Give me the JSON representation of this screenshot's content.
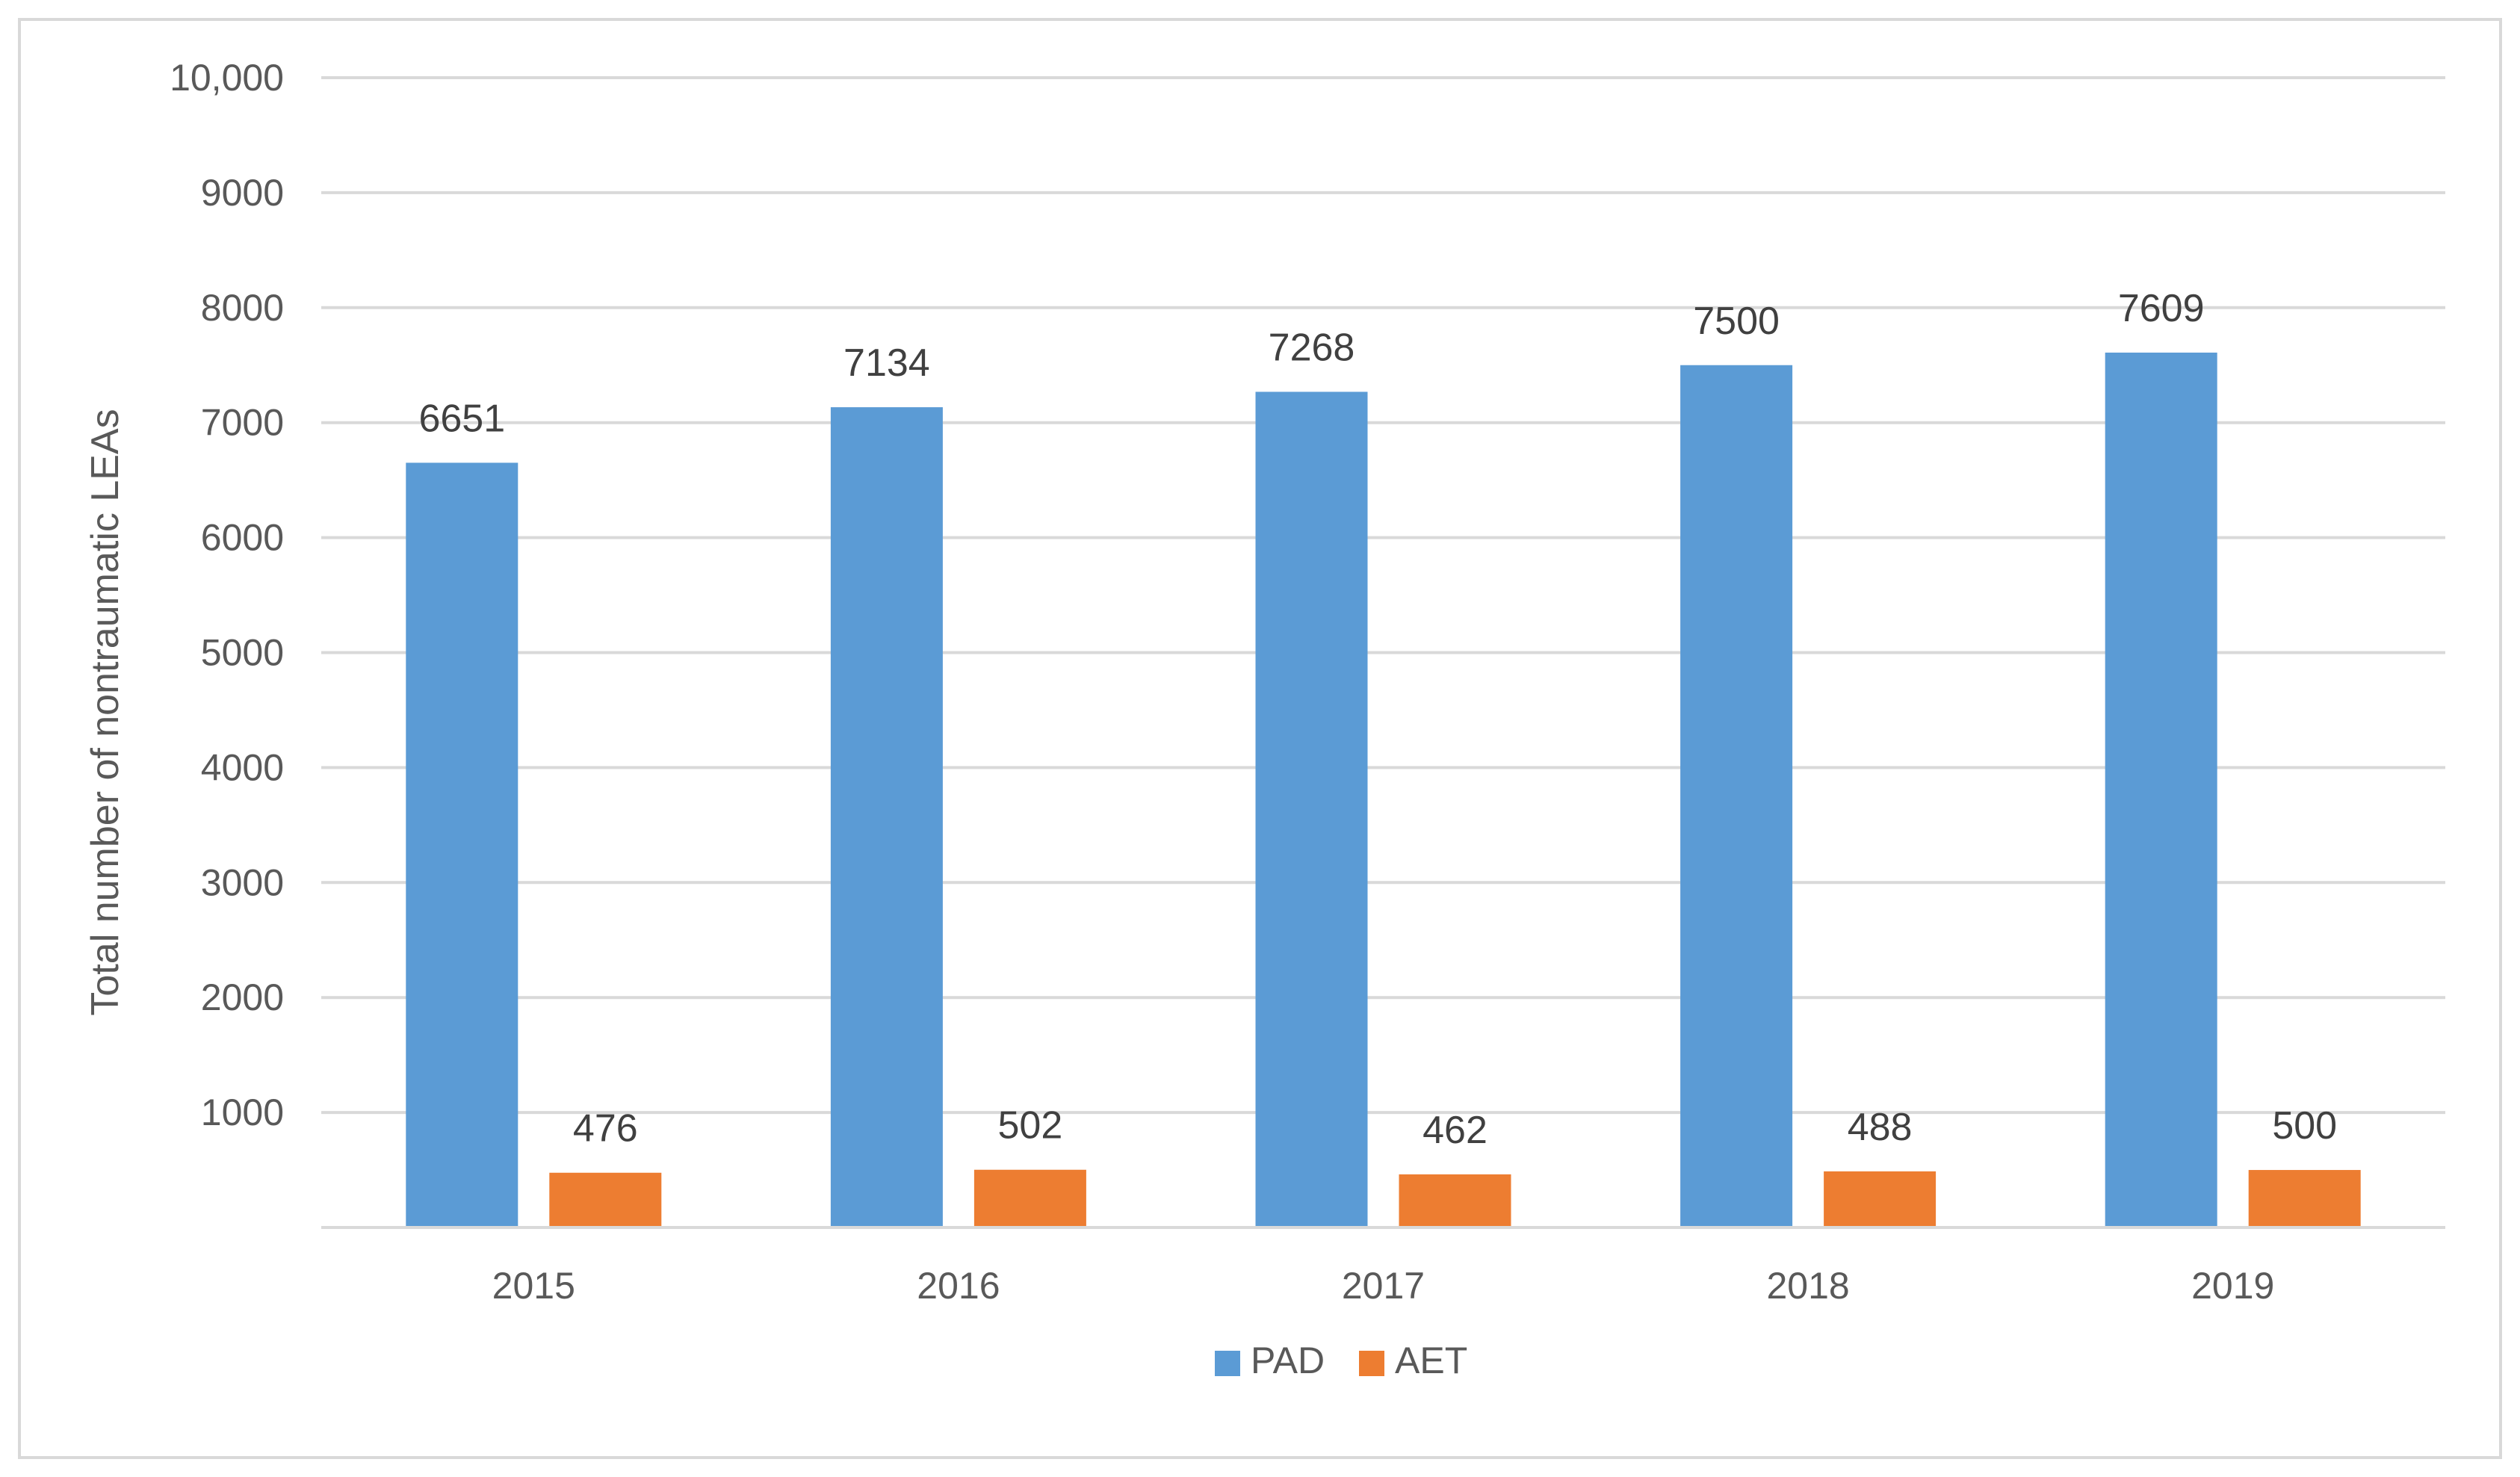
{
  "chart_data": {
    "type": "bar",
    "title": "",
    "xlabel": "",
    "ylabel": "Total number of nontraumatic LEAs",
    "categories": [
      "2015",
      "2016",
      "2017",
      "2018",
      "2019"
    ],
    "series": [
      {
        "name": "PAD",
        "color": "#5b9bd5",
        "values": [
          6651,
          7134,
          7268,
          7500,
          7609
        ]
      },
      {
        "name": "AET",
        "color": "#ed7d31",
        "values": [
          476,
          502,
          462,
          488,
          500
        ]
      }
    ],
    "ylim": [
      0,
      10000
    ],
    "yticks": [
      {
        "value": 1000,
        "label": "1000"
      },
      {
        "value": 2000,
        "label": "2000"
      },
      {
        "value": 3000,
        "label": "3000"
      },
      {
        "value": 4000,
        "label": "4000"
      },
      {
        "value": 5000,
        "label": "5000"
      },
      {
        "value": 6000,
        "label": "6000"
      },
      {
        "value": 7000,
        "label": "7000"
      },
      {
        "value": 8000,
        "label": "8000"
      },
      {
        "value": 9000,
        "label": "9000"
      },
      {
        "value": 10000,
        "label": "10,000"
      }
    ],
    "grid": true,
    "gridColor": "#d9d9d9",
    "legend": "bottom",
    "data_labels": true
  }
}
